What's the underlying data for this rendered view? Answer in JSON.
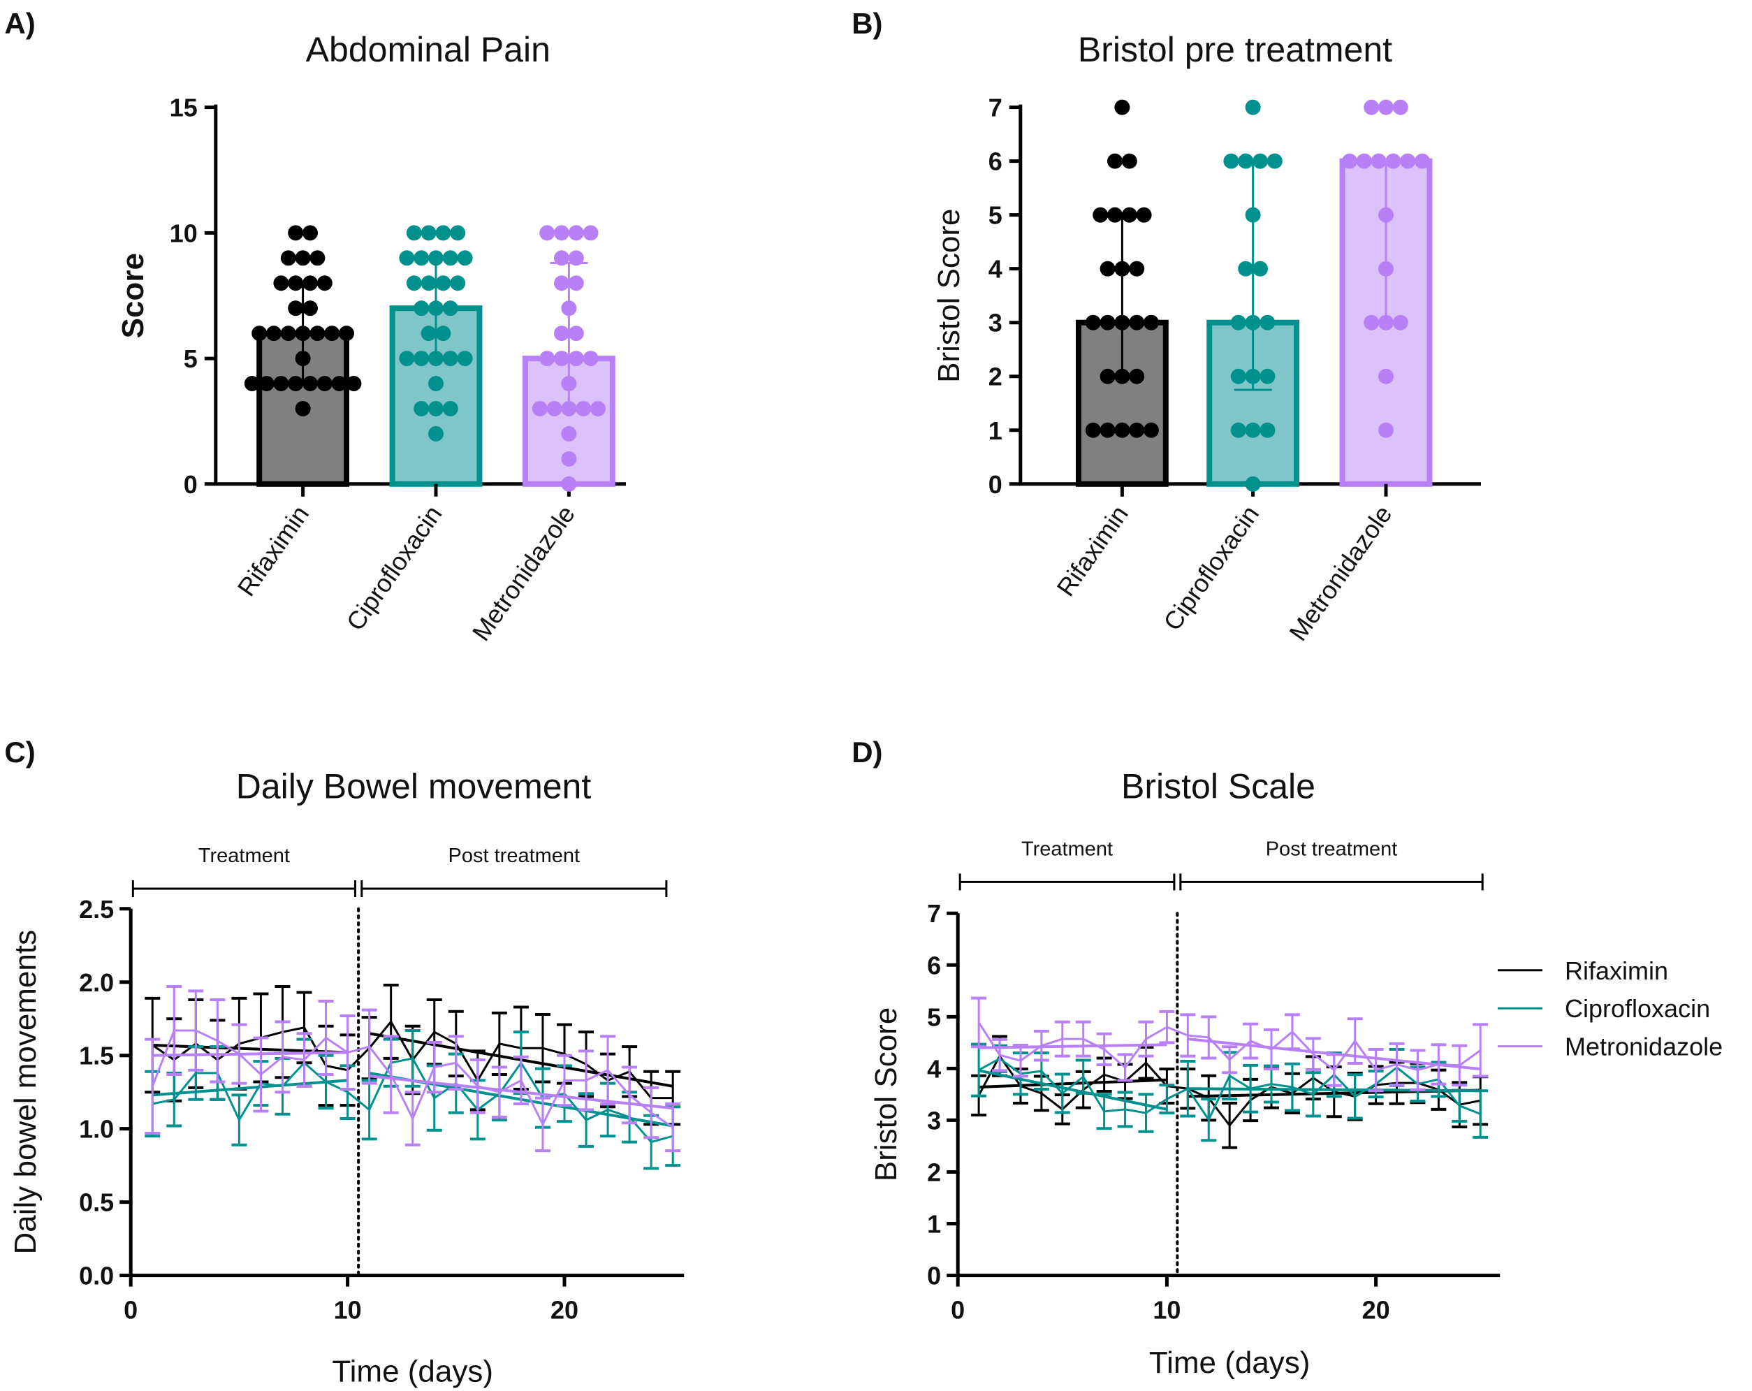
{
  "colors": {
    "Rifaximin": "#000000",
    "Ciprofloxacin": "#00918f",
    "Metronidazole": "#b880f7",
    "fill_Rifaximin": "#808080",
    "fill_Ciprofloxacin": "#80c6c8",
    "fill_Metronidazole": "#dcc1fb"
  },
  "chart_data": [
    {
      "panel_label": "A)",
      "type": "bar",
      "title": "Abdominal Pain",
      "ylabel": "Score",
      "xlabel": "",
      "ylim": [
        0,
        15
      ],
      "yticks": [
        "0",
        "5",
        "10",
        "15"
      ],
      "categories": [
        "Rifaximin",
        "Ciprofloxacin",
        "Metronidazole"
      ],
      "values": [
        6,
        7,
        5
      ],
      "error_ranges": [
        [
          4,
          8
        ],
        [
          5,
          9
        ],
        [
          3,
          8.8
        ]
      ],
      "points": [
        [
          10,
          10,
          9,
          9,
          9,
          8,
          8,
          8,
          8,
          7,
          7,
          6,
          6,
          6,
          6,
          6,
          6,
          6,
          5,
          4,
          4,
          4,
          4,
          4,
          4,
          4,
          4,
          3
        ],
        [
          10,
          10,
          10,
          10,
          9,
          9,
          9,
          9,
          9,
          8,
          8,
          8,
          8,
          7,
          7,
          7,
          6,
          6,
          5,
          5,
          5,
          5,
          5,
          4,
          3,
          3,
          3,
          2
        ],
        [
          10,
          10,
          10,
          10,
          9,
          9,
          8,
          8,
          7,
          6,
          6,
          5,
          5,
          5,
          5,
          4,
          3,
          3,
          3,
          3,
          3,
          2,
          1,
          0
        ]
      ]
    },
    {
      "panel_label": "B)",
      "type": "bar",
      "title": "Bristol pre treatment",
      "ylabel": "Bristol Score",
      "xlabel": "",
      "ylim": [
        0,
        7
      ],
      "yticks": [
        "0",
        "1",
        "2",
        "3",
        "4",
        "5",
        "6",
        "7"
      ],
      "categories": [
        "Rifaximin",
        "Ciprofloxacin",
        "Metronidazole"
      ],
      "values": [
        3,
        3,
        6
      ],
      "error_ranges": [
        [
          2,
          5
        ],
        [
          1.75,
          6
        ],
        [
          3,
          6
        ]
      ],
      "points": [
        [
          7,
          6,
          6,
          5,
          5,
          5,
          5,
          4,
          4,
          4,
          3,
          3,
          3,
          3,
          3,
          2,
          2,
          2,
          1,
          1,
          1,
          1,
          1
        ],
        [
          7,
          6,
          6,
          6,
          6,
          5,
          4,
          4,
          3,
          3,
          3,
          2,
          2,
          2,
          1,
          1,
          1,
          0
        ],
        [
          7,
          7,
          7,
          6,
          6,
          6,
          6,
          6,
          6,
          5,
          4,
          3,
          3,
          3,
          2,
          1
        ]
      ]
    },
    {
      "panel_label": "C)",
      "type": "line",
      "title": "Daily Bowel movement",
      "ylabel": "Daily bowel movements",
      "xlabel": "Time (days)",
      "ylim": [
        0,
        2.5
      ],
      "xlim": [
        0,
        26
      ],
      "yticks": [
        "0.0",
        "0.5",
        "1.0",
        "1.5",
        "2.0",
        "2.5"
      ],
      "xticks": [
        "0",
        "10",
        "20"
      ],
      "annotations": [
        "Treatment",
        "Post treatment"
      ],
      "phase_boundary_day": 10.5,
      "x": [
        1,
        2,
        3,
        4,
        5,
        6,
        7,
        8,
        9,
        10,
        11,
        12,
        13,
        14,
        15,
        16,
        17,
        18,
        19,
        20,
        21,
        22,
        23,
        24,
        25
      ],
      "series": [
        {
          "name": "Rifaximin",
          "values": [
            1.57,
            1.47,
            1.58,
            1.47,
            1.58,
            1.62,
            1.66,
            1.69,
            1.43,
            1.4,
            1.55,
            1.73,
            1.47,
            1.66,
            1.58,
            1.33,
            1.58,
            1.55,
            1.55,
            1.51,
            1.44,
            1.33,
            1.39,
            1.21,
            1.21
          ],
          "sd": [
            0.32,
            0.28,
            0.3,
            0.27,
            0.31,
            0.3,
            0.31,
            0.24,
            0.27,
            0.24,
            0.21,
            0.25,
            0.23,
            0.22,
            0.22,
            0.2,
            0.21,
            0.28,
            0.23,
            0.2,
            0.22,
            0.18,
            0.17,
            0.18,
            0.18
          ],
          "trend": [
            [
              1.57,
              1.52
            ],
            [
              1.65,
              1.29
            ]
          ]
        },
        {
          "name": "Ciprofloxacin",
          "values": [
            1.17,
            1.2,
            1.38,
            1.38,
            1.06,
            1.31,
            1.29,
            1.45,
            1.32,
            1.25,
            1.13,
            1.45,
            1.48,
            1.21,
            1.31,
            1.13,
            1.24,
            1.45,
            1.21,
            1.24,
            1.06,
            1.13,
            1.08,
            0.91,
            0.95
          ],
          "sd": [
            0.22,
            0.18,
            0.18,
            0.18,
            0.17,
            0.15,
            0.19,
            0.16,
            0.18,
            0.18,
            0.2,
            0.16,
            0.19,
            0.22,
            0.2,
            0.2,
            0.18,
            0.21,
            0.2,
            0.19,
            0.18,
            0.18,
            0.17,
            0.18,
            0.2
          ],
          "trend": [
            [
              1.23,
              1.33
            ],
            [
              1.38,
              1.02
            ]
          ]
        },
        {
          "name": "Metronidazole",
          "values": [
            1.29,
            1.67,
            1.67,
            1.6,
            1.51,
            1.37,
            1.49,
            1.47,
            1.62,
            1.52,
            1.56,
            1.37,
            1.07,
            1.42,
            1.45,
            1.29,
            1.25,
            1.33,
            1.03,
            1.33,
            1.33,
            1.4,
            1.23,
            1.11,
            1.01
          ],
          "sd": [
            0.32,
            0.3,
            0.27,
            0.28,
            0.2,
            0.25,
            0.24,
            0.18,
            0.25,
            0.25,
            0.25,
            0.26,
            0.18,
            0.17,
            0.18,
            0.18,
            0.17,
            0.16,
            0.18,
            0.17,
            0.2,
            0.23,
            0.19,
            0.17,
            0.16
          ],
          "trend": [
            [
              1.5,
              1.52
            ],
            [
              1.36,
              1.14
            ]
          ]
        }
      ]
    },
    {
      "panel_label": "D)",
      "type": "line",
      "title": "Bristol Scale",
      "ylabel": "Bristol Score",
      "xlabel": "Time (days)",
      "ylim": [
        0,
        7
      ],
      "xlim": [
        0,
        26
      ],
      "yticks": [
        "0",
        "1",
        "2",
        "3",
        "4",
        "5",
        "6",
        "7"
      ],
      "xticks": [
        "0",
        "10",
        "20"
      ],
      "annotations": [
        "Treatment",
        "Post treatment"
      ],
      "phase_boundary_day": 10.5,
      "legend": "right",
      "x": [
        1,
        2,
        3,
        4,
        5,
        6,
        7,
        8,
        9,
        10,
        11,
        12,
        13,
        14,
        15,
        16,
        17,
        18,
        19,
        20,
        21,
        22,
        23,
        24,
        25
      ],
      "series": [
        {
          "name": "Rifaximin",
          "values": [
            3.48,
            4.24,
            3.66,
            3.52,
            3.21,
            3.59,
            3.88,
            3.75,
            4.11,
            3.66,
            3.61,
            3.43,
            2.9,
            3.39,
            3.64,
            3.52,
            3.82,
            3.55,
            3.46,
            3.68,
            3.72,
            3.72,
            3.59,
            3.3,
            3.38
          ],
          "sd": [
            0.38,
            0.38,
            0.33,
            0.33,
            0.28,
            0.35,
            0.32,
            0.33,
            0.3,
            0.33,
            0.38,
            0.43,
            0.43,
            0.4,
            0.4,
            0.38,
            0.41,
            0.48,
            0.45,
            0.36,
            0.4,
            0.38,
            0.38,
            0.43,
            0.46
          ],
          "trend": [
            [
              3.64,
              3.78
            ],
            [
              3.46,
              3.58
            ]
          ]
        },
        {
          "name": "Ciprofloxacin",
          "values": [
            3.97,
            4.19,
            3.9,
            3.95,
            3.52,
            3.84,
            3.17,
            3.21,
            3.14,
            3.41,
            3.61,
            3.01,
            3.86,
            3.61,
            3.7,
            3.64,
            3.5,
            3.88,
            3.46,
            3.7,
            4.02,
            3.7,
            3.79,
            3.28,
            3.12
          ],
          "sd": [
            0.5,
            0.25,
            0.4,
            0.35,
            0.37,
            0.32,
            0.33,
            0.33,
            0.36,
            0.27,
            0.53,
            0.4,
            0.45,
            0.45,
            0.35,
            0.45,
            0.42,
            0.42,
            0.42,
            0.25,
            0.35,
            0.33,
            0.33,
            0.3,
            0.45
          ],
          "trend": [
            [
              3.96,
              3.21
            ],
            [
              3.61,
              3.57
            ]
          ]
        },
        {
          "name": "Metronidazole",
          "values": [
            4.89,
            4.26,
            4.15,
            4.44,
            4.57,
            4.57,
            4.37,
            4.02,
            4.57,
            4.8,
            4.64,
            4.6,
            4.17,
            4.53,
            4.37,
            4.71,
            4.28,
            3.97,
            4.53,
            3.97,
            4.08,
            3.97,
            4.08,
            4.06,
            4.35
          ],
          "sd": [
            0.47,
            0.3,
            0.3,
            0.28,
            0.33,
            0.33,
            0.3,
            0.25,
            0.33,
            0.3,
            0.4,
            0.4,
            0.25,
            0.33,
            0.38,
            0.33,
            0.3,
            0.3,
            0.43,
            0.4,
            0.4,
            0.38,
            0.38,
            0.38,
            0.5
          ],
          "trend": [
            [
              4.4,
              4.46
            ],
            [
              4.57,
              3.99
            ]
          ]
        }
      ]
    }
  ]
}
